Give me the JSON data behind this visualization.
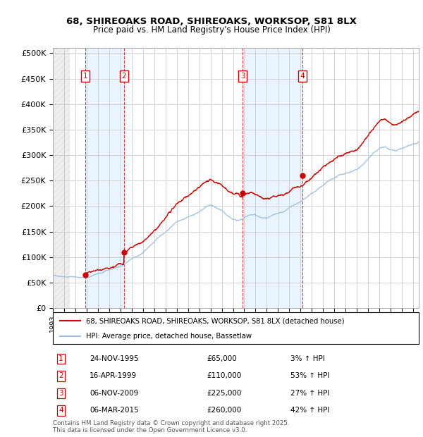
{
  "title1": "68, SHIREOAKS ROAD, SHIREOAKS, WORKSOP, S81 8LX",
  "title2": "Price paid vs. HM Land Registry's House Price Index (HPI)",
  "ylabel_ticks": [
    "£0",
    "£50K",
    "£100K",
    "£150K",
    "£200K",
    "£250K",
    "£300K",
    "£350K",
    "£400K",
    "£450K",
    "£500K"
  ],
  "ytick_values": [
    0,
    50000,
    100000,
    150000,
    200000,
    250000,
    300000,
    350000,
    400000,
    450000,
    500000
  ],
  "ylim": [
    0,
    510000
  ],
  "xlim_start": 1993.0,
  "xlim_end": 2025.5,
  "transactions": [
    {
      "num": 1,
      "date_label": "24-NOV-1995",
      "date_x": 1995.9,
      "price": 65000,
      "hpi_pct": "3%",
      "label": "1"
    },
    {
      "num": 2,
      "date_label": "16-APR-1999",
      "date_x": 1999.3,
      "price": 110000,
      "hpi_pct": "53%",
      "label": "2"
    },
    {
      "num": 3,
      "date_label": "06-NOV-2009",
      "date_x": 2009.85,
      "price": 225000,
      "hpi_pct": "27%",
      "label": "3"
    },
    {
      "num": 4,
      "date_label": "06-MAR-2015",
      "date_x": 2015.18,
      "price": 260000,
      "hpi_pct": "42%",
      "label": "4"
    }
  ],
  "legend_line1": "68, SHIREOAKS ROAD, SHIREOAKS, WORKSOP, S81 8LX (detached house)",
  "legend_line2": "HPI: Average price, detached house, Bassetlaw",
  "footer1": "Contains HM Land Registry data © Crown copyright and database right 2025.",
  "footer2": "This data is licensed under the Open Government Licence v3.0.",
  "property_color": "#cc0000",
  "hpi_color": "#9dbfdf",
  "grid_color": "#cccccc",
  "transaction_box_color": "#cc0000",
  "shade_color": "#ddeeff"
}
